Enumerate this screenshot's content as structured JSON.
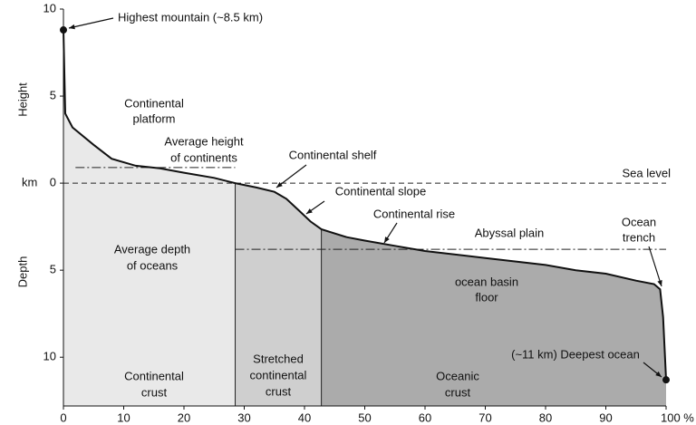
{
  "chart_data": {
    "type": "hypsometric",
    "x": [
      0,
      0.3,
      1.5,
      5,
      8,
      12,
      16,
      20,
      25,
      28.5,
      32,
      35,
      37,
      39,
      41,
      42.8,
      47,
      50,
      55,
      60,
      70,
      80,
      85,
      90,
      95,
      98,
      99,
      99.5,
      100
    ],
    "y": [
      8.8,
      4.0,
      3.2,
      2.2,
      1.4,
      1.0,
      0.85,
      0.6,
      0.3,
      0,
      -0.25,
      -0.5,
      -0.9,
      -1.55,
      -2.2,
      -2.65,
      -3.1,
      -3.3,
      -3.6,
      -3.9,
      -4.3,
      -4.7,
      -5.0,
      -5.2,
      -5.6,
      -5.8,
      -6.1,
      -7.7,
      -11.3
    ],
    "xlim": [
      0,
      100
    ],
    "ylim": [
      -12.8,
      10
    ],
    "xticks": [
      0,
      10,
      20,
      30,
      40,
      50,
      60,
      70,
      80,
      90,
      {
        "value": 100,
        "label": "100 %"
      }
    ],
    "yticks": [
      10,
      5,
      0,
      {
        "value": -5,
        "label": "5"
      },
      {
        "value": -10,
        "label": "10"
      }
    ],
    "y_labels": {
      "height": "Height",
      "unit": "km",
      "depth": "Depth"
    },
    "reference_lines": [
      {
        "label": [
          "Average height",
          "of continents"
        ],
        "value": 0.9,
        "style": "dash-dot",
        "x": [
          2,
          28.5
        ]
      },
      {
        "label": [
          "Sea level"
        ],
        "value": 0,
        "style": "dashed",
        "x": [
          0,
          100
        ]
      },
      {
        "label": [
          "Average depth",
          "of oceans"
        ],
        "value": -3.8,
        "style": "dash-dot",
        "x": [
          28.5,
          100
        ]
      }
    ],
    "regions": [
      {
        "label": [
          "Continental",
          "crust"
        ],
        "x": [
          0,
          28.5
        ],
        "color": "#e9e9e9"
      },
      {
        "label": [
          "Stretched",
          "continental",
          "crust"
        ],
        "x": [
          28.5,
          42.8
        ],
        "color": "#cfcfcf"
      },
      {
        "label": [
          "Oceanic",
          "crust"
        ],
        "x": [
          42.8,
          100
        ],
        "color": "#ababab"
      }
    ],
    "annotations": [
      {
        "text": [
          "Highest mountain (~8.5 km)"
        ]
      },
      {
        "text": [
          "Continental",
          "platform"
        ]
      },
      {
        "text": [
          "Continental shelf"
        ]
      },
      {
        "text": [
          "Continental slope"
        ]
      },
      {
        "text": [
          "Continental rise"
        ]
      },
      {
        "text": [
          "Abyssal plain"
        ]
      },
      {
        "text": [
          "Ocean",
          "trench"
        ]
      },
      {
        "text": [
          "ocean basin",
          "floor"
        ]
      },
      {
        "text": [
          "(~11 km) Deepest ocean"
        ]
      }
    ]
  }
}
